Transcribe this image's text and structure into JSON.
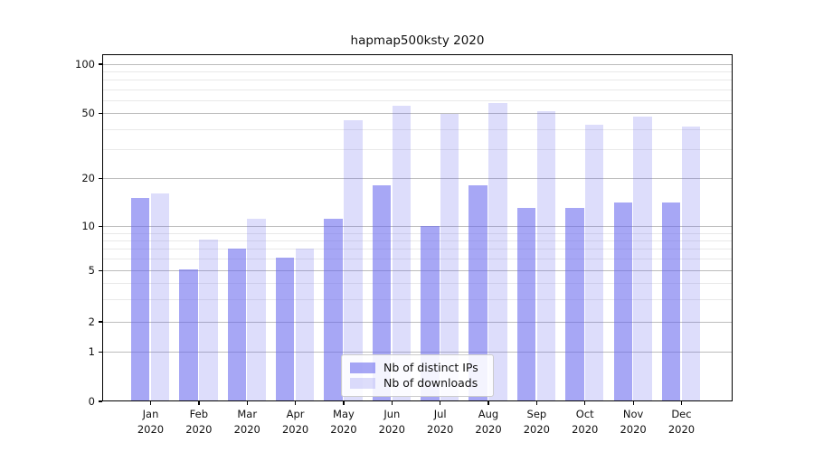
{
  "chart_data": {
    "type": "bar",
    "title": "hapmap500ksty 2020",
    "categories": [
      "Jan",
      "Feb",
      "Mar",
      "Apr",
      "May",
      "Jun",
      "Jul",
      "Aug",
      "Sep",
      "Oct",
      "Nov",
      "Dec"
    ],
    "category_year": "2020",
    "series": [
      {
        "name": "Nb of distinct IPs",
        "color": "rgba(100,100,238,0.57)",
        "values": [
          15,
          5,
          7,
          6,
          11,
          18,
          10,
          18,
          13,
          13,
          14,
          14
        ]
      },
      {
        "name": "Nb of downloads",
        "color": "rgba(100,100,238,0.22)",
        "values": [
          16,
          8,
          11,
          7,
          45,
          55,
          49,
          57,
          51,
          42,
          47,
          41
        ]
      }
    ],
    "yscale": "symlog",
    "yticks": [
      100,
      50,
      20,
      10,
      5,
      2,
      1,
      0
    ],
    "minor_yticks": [
      3,
      4,
      6,
      7,
      8,
      9,
      30,
      40,
      60,
      70,
      80,
      90
    ],
    "ylim": [
      0,
      110
    ],
    "grid": true,
    "legend_position": "lower center",
    "colors": {
      "major_grid": "#bcbcbc",
      "minor_grid": "#e9e9e9",
      "axis": "#000000",
      "text": "#111111"
    }
  }
}
